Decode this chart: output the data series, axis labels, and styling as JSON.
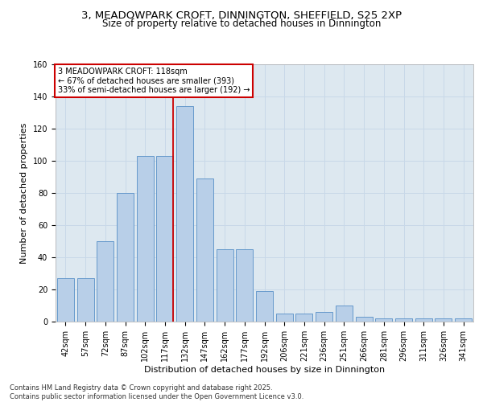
{
  "title_line1": "3, MEADOWPARK CROFT, DINNINGTON, SHEFFIELD, S25 2XP",
  "title_line2": "Size of property relative to detached houses in Dinnington",
  "xlabel": "Distribution of detached houses by size in Dinnington",
  "ylabel": "Number of detached properties",
  "categories": [
    "42sqm",
    "57sqm",
    "72sqm",
    "87sqm",
    "102sqm",
    "117sqm",
    "132sqm",
    "147sqm",
    "162sqm",
    "177sqm",
    "192sqm",
    "206sqm",
    "221sqm",
    "236sqm",
    "251sqm",
    "266sqm",
    "281sqm",
    "296sqm",
    "311sqm",
    "326sqm",
    "341sqm"
  ],
  "values": [
    27,
    27,
    50,
    80,
    103,
    103,
    134,
    89,
    45,
    45,
    19,
    5,
    5,
    6,
    10,
    3,
    2,
    2,
    2,
    2,
    2
  ],
  "bar_color": "#b8cfe8",
  "bar_edge_color": "#6699cc",
  "vline_x": 5.42,
  "vline_color": "#cc0000",
  "annotation_text": "3 MEADOWPARK CROFT: 118sqm\n← 67% of detached houses are smaller (393)\n33% of semi-detached houses are larger (192) →",
  "grid_color": "#c8d8e8",
  "background_color": "#dde8f0",
  "ylim": [
    0,
    160
  ],
  "yticks": [
    0,
    20,
    40,
    60,
    80,
    100,
    120,
    140,
    160
  ],
  "footer": "Contains HM Land Registry data © Crown copyright and database right 2025.\nContains public sector information licensed under the Open Government Licence v3.0.",
  "title_fontsize": 9.5,
  "subtitle_fontsize": 8.5,
  "axis_label_fontsize": 8,
  "tick_fontsize": 7,
  "annotation_fontsize": 7,
  "footer_fontsize": 6
}
